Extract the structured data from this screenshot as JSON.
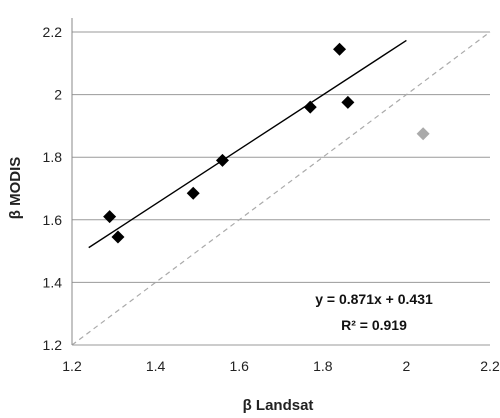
{
  "chart_data": {
    "type": "scatter",
    "xlabel": "β Landsat",
    "ylabel": "β MODIS",
    "xlim": [
      1.2,
      2.2
    ],
    "ylim": [
      1.2,
      2.2
    ],
    "x_ticks": [
      "1.2",
      "1.4",
      "1.6",
      "1.8",
      "2",
      "2.2"
    ],
    "y_ticks": [
      "1.2",
      "1.4",
      "1.6",
      "1.8",
      "2",
      "2.2"
    ],
    "grid": "horizontal",
    "series": [
      {
        "color": "#000000",
        "marker": "diamond",
        "points": [
          {
            "x": 1.29,
            "y": 1.61
          },
          {
            "x": 1.31,
            "y": 1.545
          },
          {
            "x": 1.49,
            "y": 1.685
          },
          {
            "x": 1.56,
            "y": 1.79
          },
          {
            "x": 1.77,
            "y": 1.96
          },
          {
            "x": 1.84,
            "y": 2.145
          },
          {
            "x": 1.86,
            "y": 1.975
          }
        ]
      },
      {
        "color": "#aaaaaa",
        "marker": "diamond",
        "points": [
          {
            "x": 2.04,
            "y": 1.875
          }
        ]
      }
    ],
    "trendline": {
      "slope": 0.871,
      "intercept": 0.431,
      "x_from": 1.24,
      "x_to": 2.0,
      "color": "#000000"
    },
    "one_to_one_line": {
      "style": "dashed",
      "color": "#aaaaaa"
    },
    "annotations": {
      "equation": "y = 0.871x + 0.431",
      "r_squared": "R² = 0.919"
    }
  }
}
